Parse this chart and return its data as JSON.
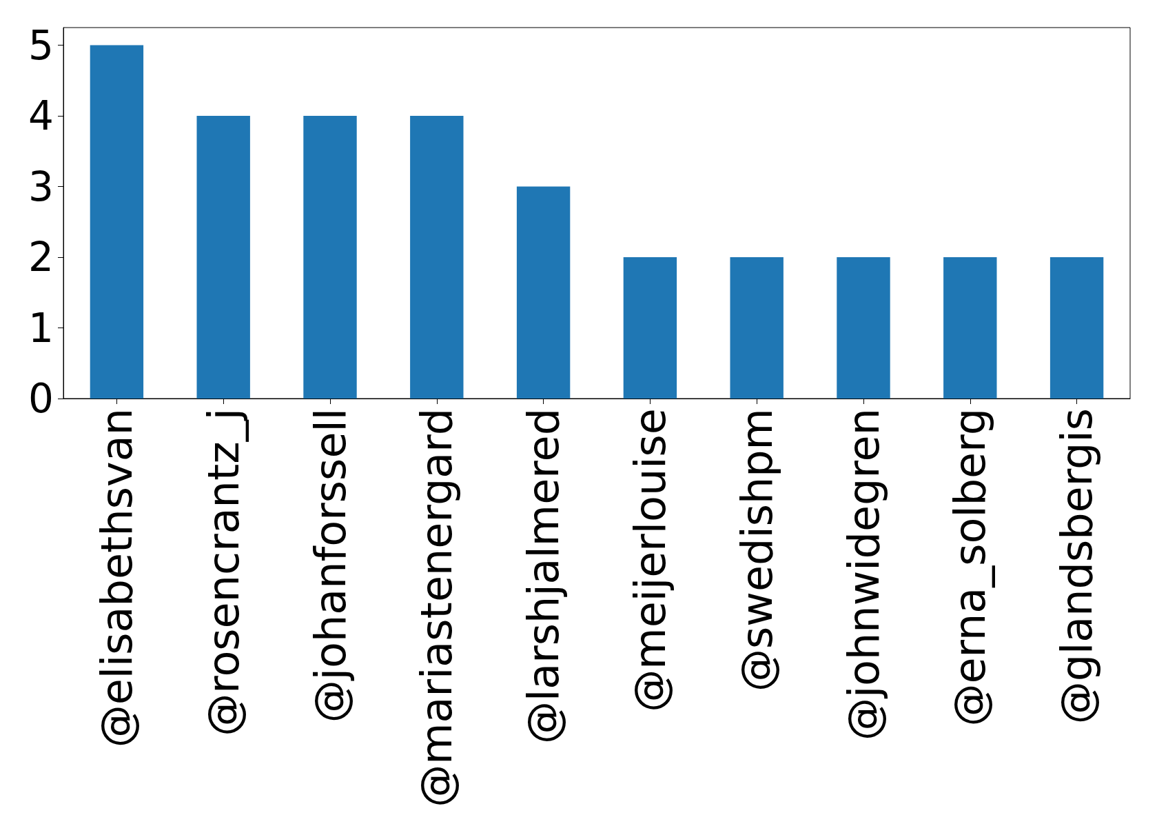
{
  "chart_data": {
    "type": "bar",
    "categories": [
      "@elisabethsvan",
      "@rosencrantz_j",
      "@johanforssell",
      "@mariastenergard",
      "@larshjalmered",
      "@meijerlouise",
      "@swedishpm",
      "@johnwidegren",
      "@erna_solberg",
      "@glandsbergis"
    ],
    "values": [
      5,
      4,
      4,
      4,
      3,
      2,
      2,
      2,
      2,
      2
    ],
    "color": "#1f77b4",
    "ylim": [
      0,
      5.25
    ],
    "yticks": [
      0,
      1,
      2,
      3,
      4,
      5
    ],
    "grid": false
  }
}
